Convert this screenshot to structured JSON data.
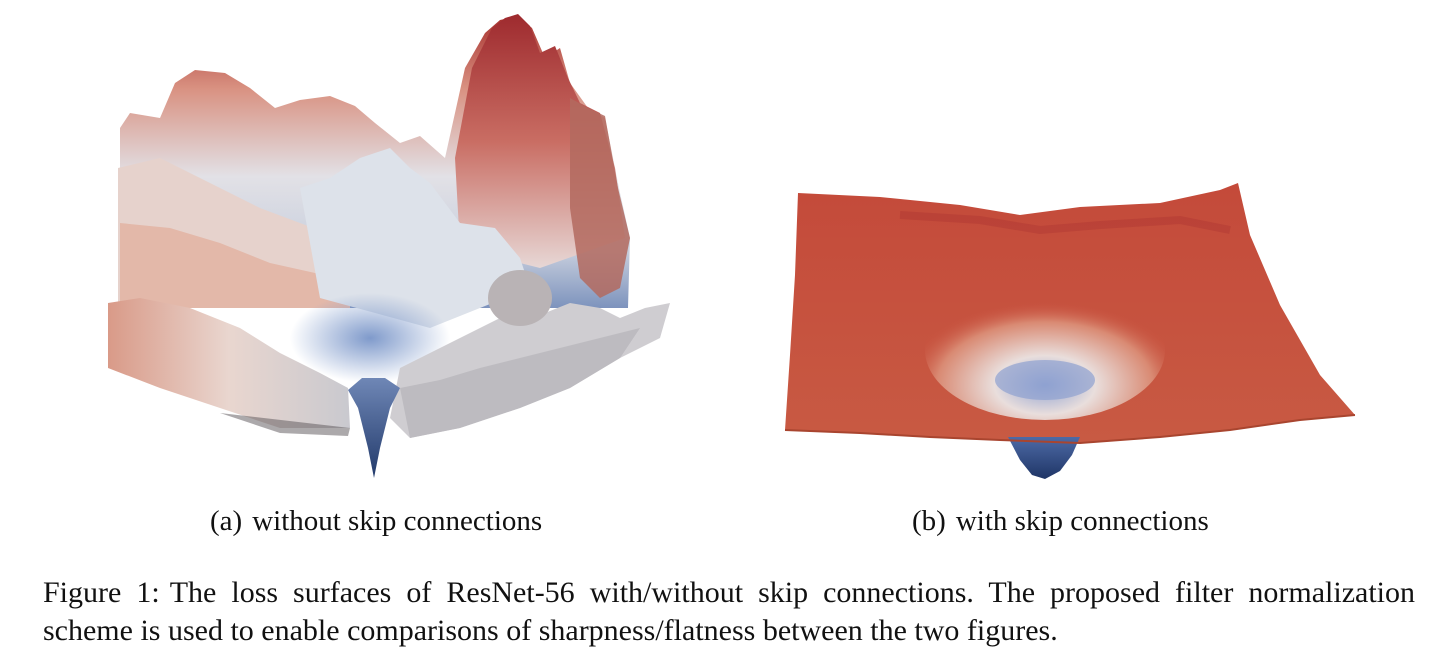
{
  "figure": {
    "panel_a": {
      "tag": "(a)",
      "label": "without skip connections"
    },
    "panel_b": {
      "tag": "(b)",
      "label": "with skip connections"
    },
    "caption_label": "Figure 1:",
    "caption_text": "The loss surfaces of ResNet-56 with/without skip connections.  The proposed filter normalization scheme is used to enable comparisons of sharpness/flatness between the two figures."
  },
  "colors": {
    "surface_high": "#b23a35",
    "surface_mid": "#d98a78",
    "surface_neutral": "#e4e4ea",
    "surface_low": "#2e4577",
    "flat_surface": "#c9533f"
  }
}
